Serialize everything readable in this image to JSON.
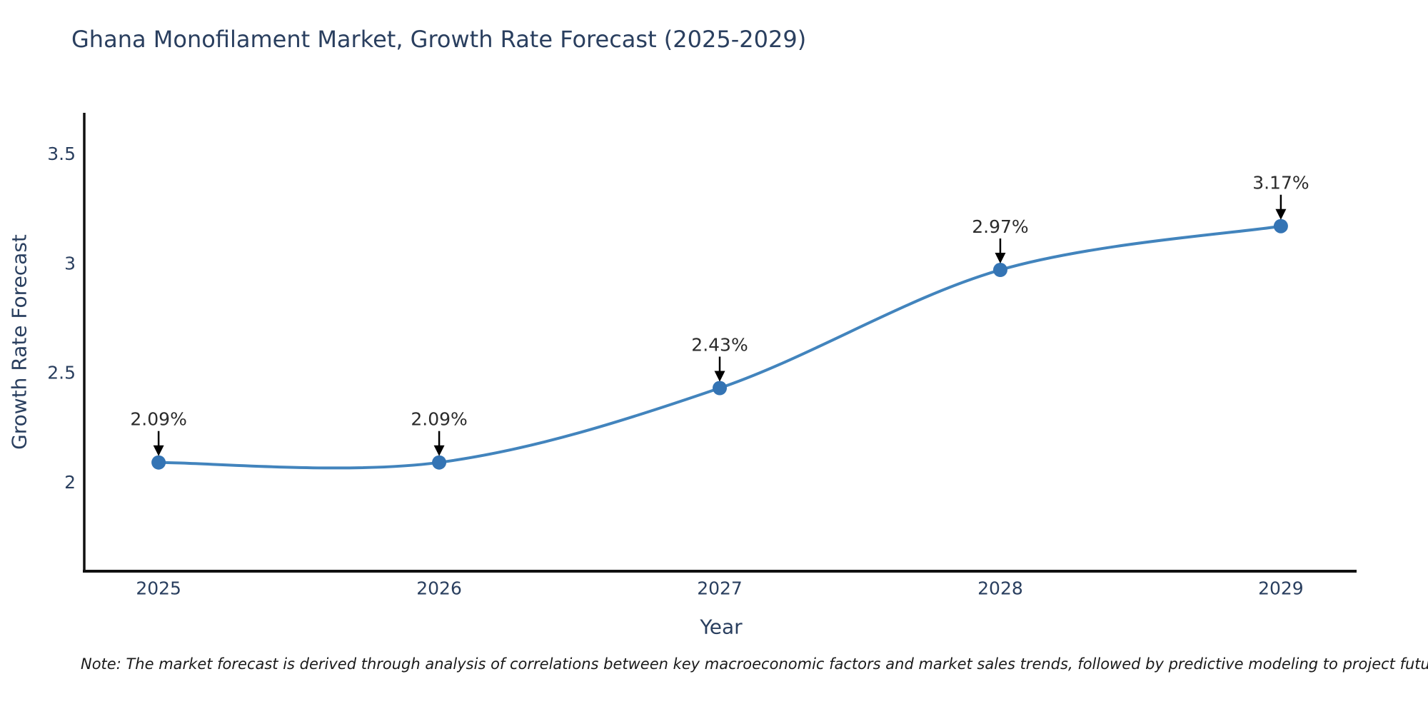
{
  "chart_data": {
    "type": "line",
    "title": "Ghana Monofilament Market, Growth Rate Forecast (2025-2029)",
    "xlabel": "Year",
    "ylabel": "Growth Rate Forecast",
    "x": [
      2025,
      2026,
      2027,
      2028,
      2029
    ],
    "series": [
      {
        "name": "Growth Rate Forecast",
        "values": [
          2.09,
          2.09,
          2.43,
          2.97,
          3.17
        ]
      }
    ],
    "point_labels": [
      "2.09%",
      "2.09%",
      "2.43%",
      "2.97%",
      "3.17%"
    ],
    "xticks": [
      2025,
      2026,
      2027,
      2028,
      2029
    ],
    "xtick_labels": [
      "2025",
      "2026",
      "2027",
      "2028",
      "2029"
    ],
    "yticks": [
      2,
      2.5,
      3,
      3.5
    ],
    "ytick_labels": [
      "2",
      "2.5",
      "3",
      "3.5"
    ],
    "xlim": [
      2024.735,
      2029.27
    ],
    "ylim": [
      1.593,
      3.688
    ],
    "line_shape": "spline",
    "grid": false,
    "legend": "none",
    "colors": {
      "line": "#4284bd",
      "marker": "#3474b4",
      "axis_line": "#111111",
      "title_text": "#2a3f5f",
      "tick_text": "#2a3f5f",
      "annotation_text": "#2b2b2b",
      "annotation_arrow": "#000000",
      "background": "#ffffff"
    }
  },
  "note": {
    "text": "Note: The market forecast is derived through analysis of correlations between key macroeconomic factors and market sales trends, followed by predictive modeling to project future sales"
  }
}
